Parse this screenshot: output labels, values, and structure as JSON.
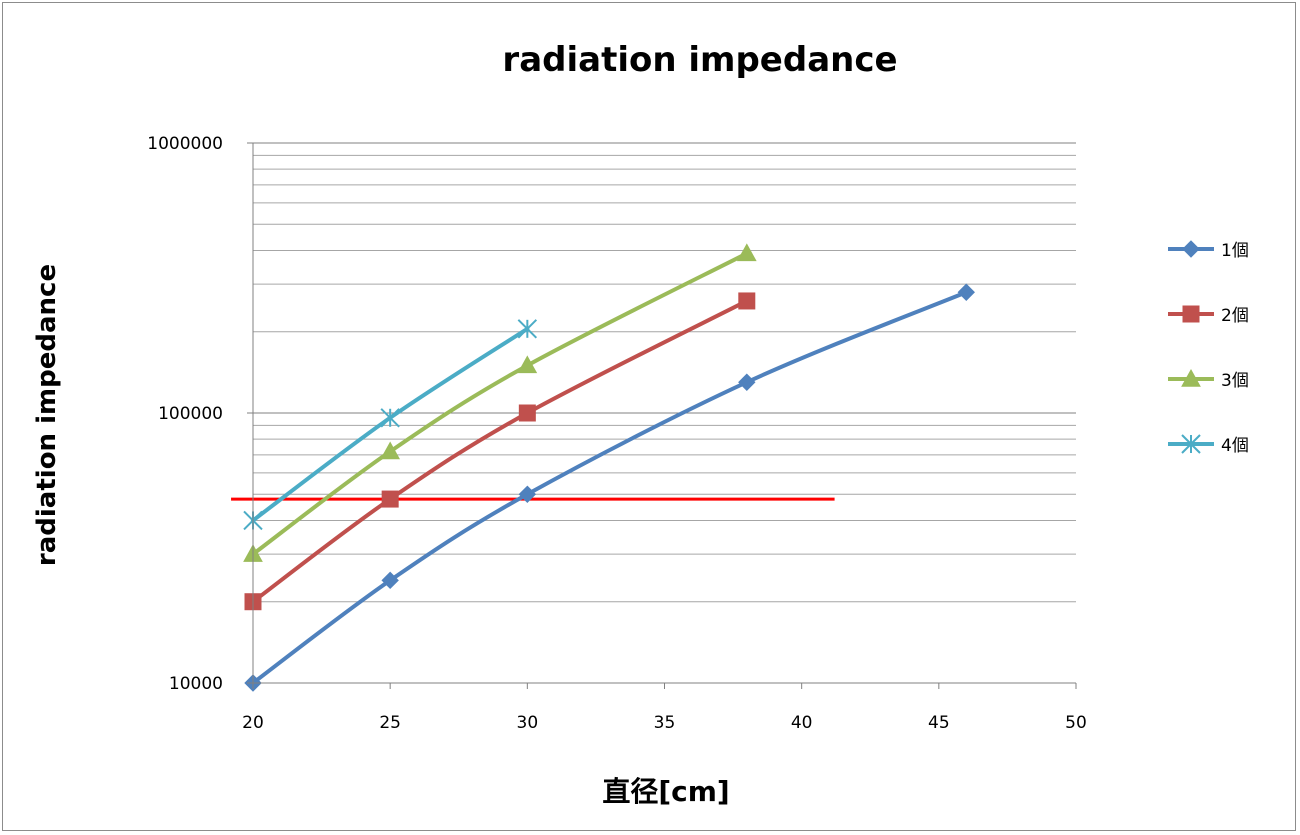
{
  "chart_data": {
    "type": "line",
    "title": "radiation impedance",
    "xlabel": "直径[cm]",
    "ylabel": "radiation impedance",
    "xlim": [
      20,
      50
    ],
    "ylim": [
      10000,
      1000000
    ],
    "yscale": "log",
    "x_ticks": [
      20,
      25,
      30,
      35,
      40,
      45,
      50
    ],
    "y_ticks": [
      10000,
      100000,
      1000000
    ],
    "y_tick_labels": [
      "10000",
      "100000",
      "1000000"
    ],
    "grid": "horizontal major and minor",
    "legend": "right",
    "series": [
      {
        "name": "1個",
        "color": "#4F81BD",
        "marker": "diamond",
        "x": [
          20,
          25,
          30,
          38,
          46
        ],
        "y": [
          10000,
          24000,
          50000,
          130000,
          280000
        ]
      },
      {
        "name": "2個",
        "color": "#C0504D",
        "marker": "square",
        "x": [
          20,
          25,
          30,
          38
        ],
        "y": [
          20000,
          48000,
          100000,
          260000
        ]
      },
      {
        "name": "3個",
        "color": "#9BBB59",
        "marker": "triangle",
        "x": [
          20,
          25,
          30,
          38
        ],
        "y": [
          30000,
          72000,
          150000,
          390000
        ]
      },
      {
        "name": "4個",
        "color": "#4BACC6",
        "marker": "star",
        "x": [
          20,
          25,
          30
        ],
        "y": [
          40000,
          96000,
          205000
        ]
      }
    ],
    "reference_line": {
      "y": 48000,
      "x_range": [
        19.2,
        41.2
      ],
      "color": "#FF0000"
    }
  }
}
